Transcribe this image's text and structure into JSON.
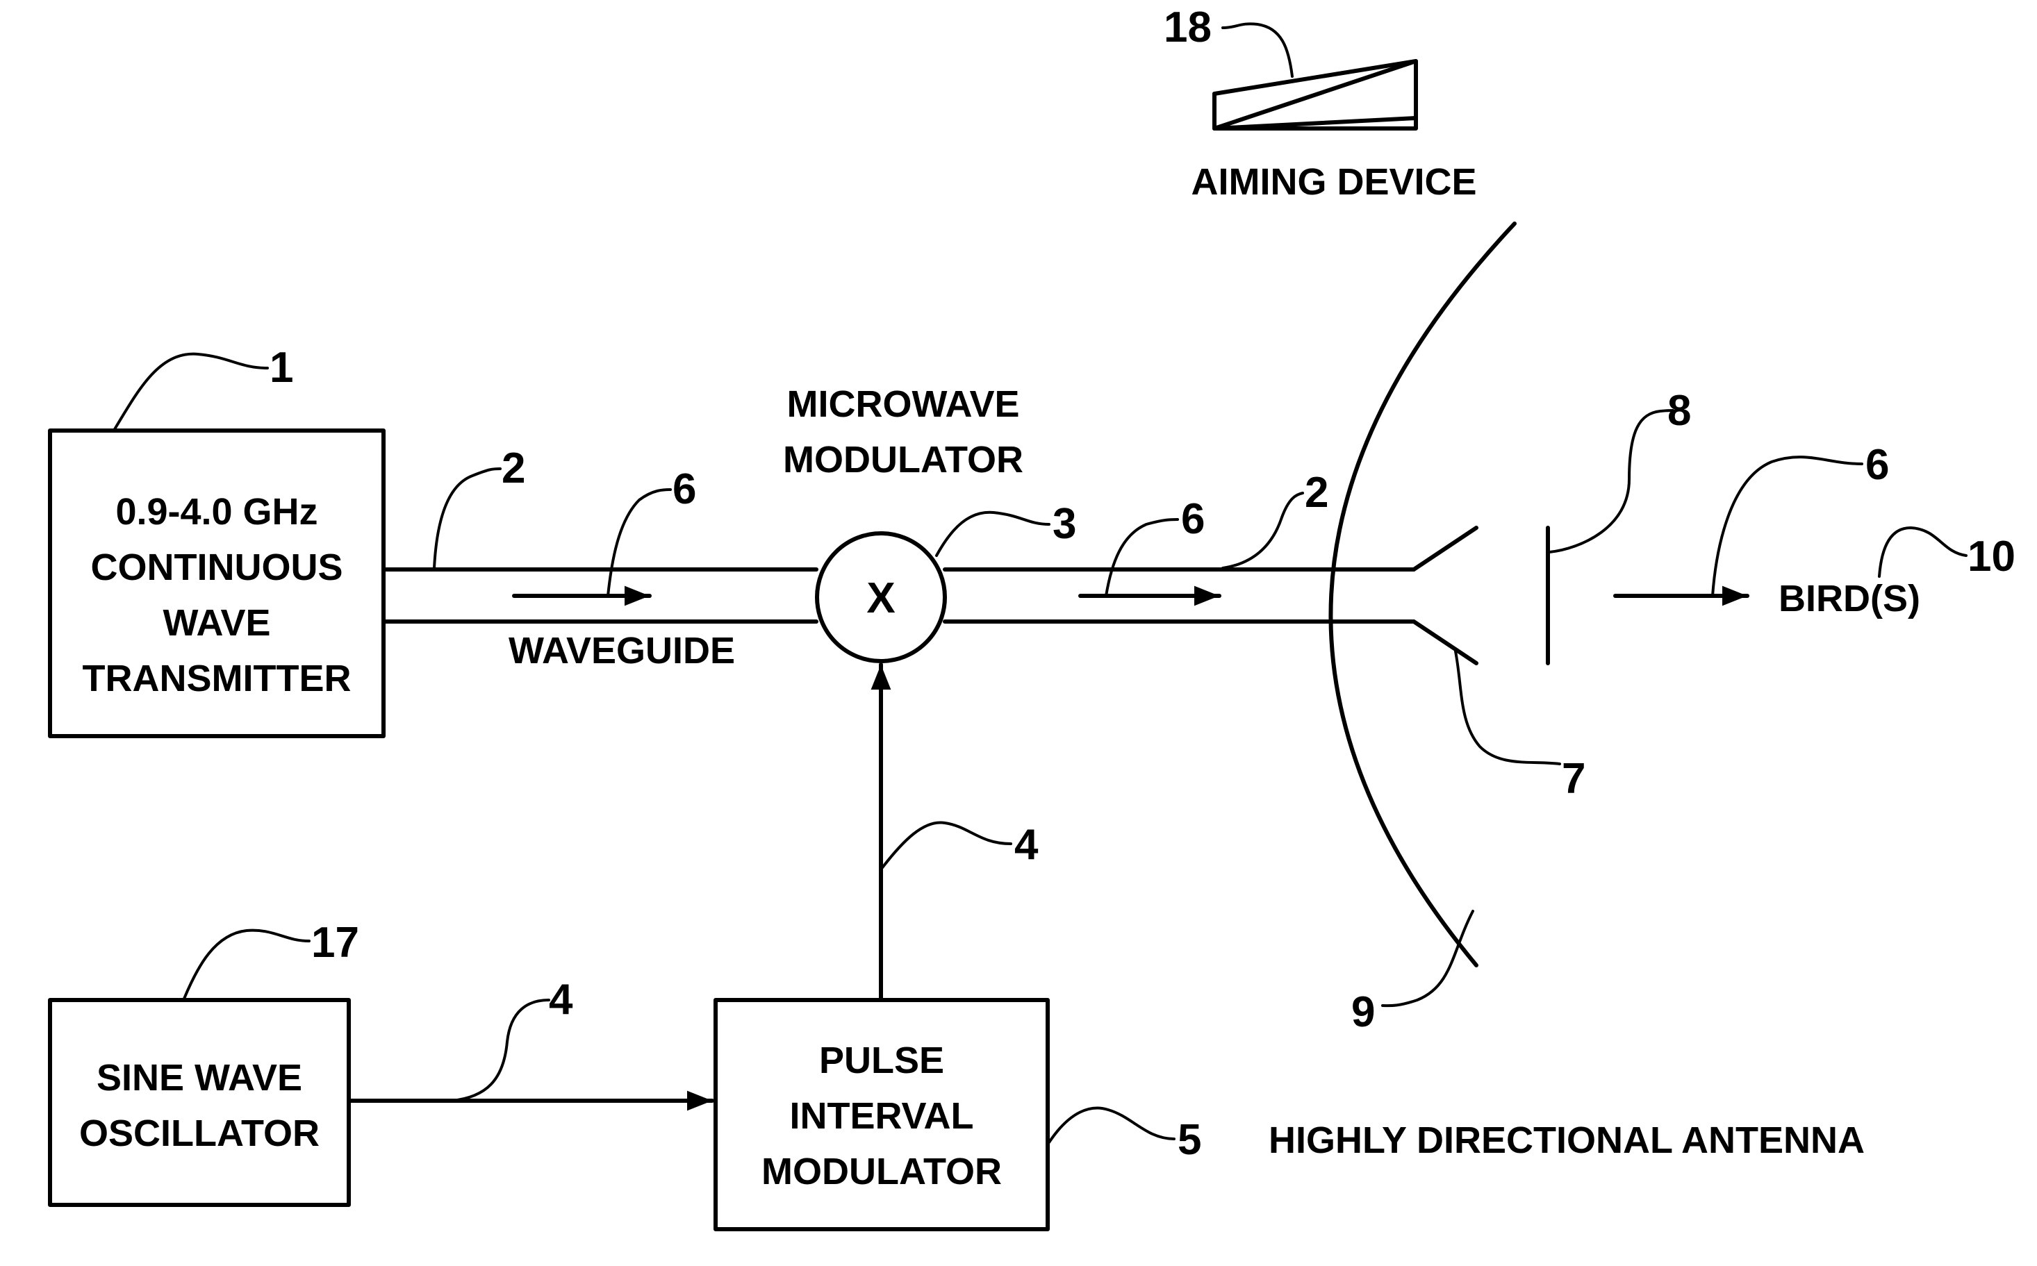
{
  "blocks": {
    "transmitter": [
      "0.9-4.0 GHz",
      "CONTINUOUS",
      "WAVE",
      "TRANSMITTER"
    ],
    "oscillator": [
      "SINE WAVE",
      "OSCILLATOR"
    ],
    "pulse_modulator": [
      "PULSE",
      "INTERVAL",
      "MODULATOR"
    ],
    "microwave_modulator": [
      "MICROWAVE",
      "MODULATOR"
    ],
    "mixer_symbol": "X"
  },
  "labels": {
    "waveguide": "WAVEGUIDE",
    "aiming_device": "AIMING DEVICE",
    "antenna": "HIGHLY DIRECTIONAL ANTENNA",
    "target": "BIRD(S)"
  },
  "ref_numbers": {
    "transmitter": "1",
    "waveguide_in": "2",
    "flow_in": "6",
    "mixer": "3",
    "flow_out": "6",
    "waveguide_out": "2",
    "reflector": "8",
    "beam": "6",
    "bird": "10",
    "horn": "7",
    "signal_vertical": "4",
    "oscillator": "17",
    "signal_horizontal": "4",
    "pulse_modulator": "5",
    "dish": "9",
    "aiming_device": "18"
  }
}
